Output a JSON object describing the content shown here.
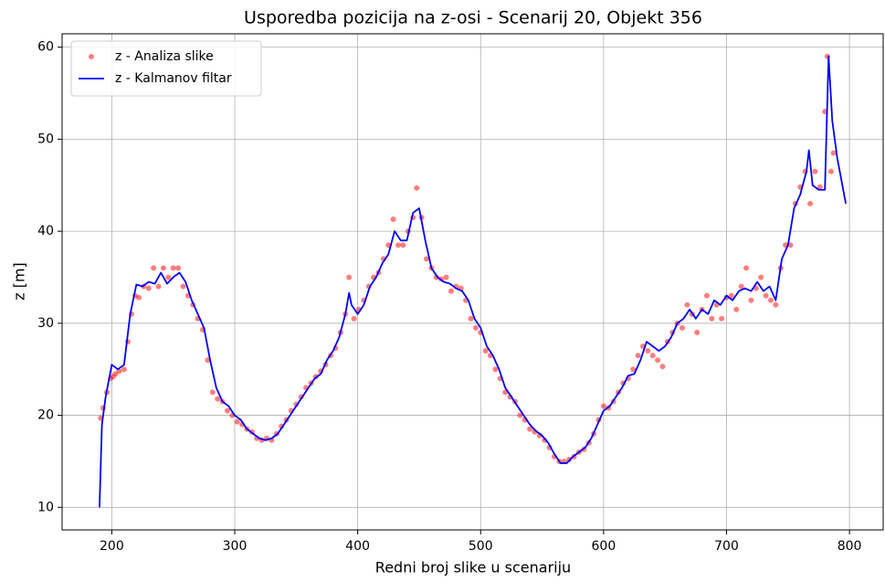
{
  "chart_data": {
    "type": "line",
    "title": "Usporedba pozicija na z-osi - Scenarij 20, Objekt 356",
    "xlabel": "Redni broj slike u scenariju",
    "ylabel": "z [m]",
    "xlim": [
      159.6,
      827.4
    ],
    "ylim": [
      7.55,
      61.45
    ],
    "xticks": [
      200,
      300,
      400,
      500,
      600,
      700,
      800
    ],
    "yticks": [
      10,
      20,
      30,
      40,
      50,
      60
    ],
    "grid": true,
    "legend": "upper left",
    "series": [
      {
        "name": "z - Analiza slike",
        "kind": "scatter",
        "color": "#ff0000",
        "x": [
          191,
          193,
          196,
          199,
          201,
          203,
          206,
          210,
          213,
          216,
          219,
          222,
          226,
          230,
          234,
          238,
          242,
          246,
          250,
          254,
          258,
          262,
          266,
          270,
          274,
          278,
          282,
          286,
          290,
          294,
          298,
          302,
          306,
          310,
          314,
          318,
          322,
          326,
          330,
          334,
          338,
          342,
          346,
          350,
          354,
          358,
          362,
          366,
          370,
          374,
          378,
          382,
          386,
          390,
          393,
          397,
          401,
          405,
          409,
          413,
          417,
          421,
          425,
          429,
          433,
          437,
          441,
          445,
          448,
          452,
          456,
          460,
          464,
          468,
          472,
          476,
          480,
          484,
          488,
          492,
          496,
          500,
          504,
          508,
          512,
          516,
          520,
          524,
          528,
          532,
          536,
          540,
          544,
          548,
          552,
          556,
          560,
          564,
          568,
          572,
          576,
          580,
          584,
          588,
          592,
          596,
          600,
          604,
          608,
          612,
          616,
          620,
          624,
          628,
          632,
          636,
          640,
          644,
          648,
          652,
          656,
          660,
          664,
          668,
          672,
          676,
          680,
          684,
          688,
          692,
          696,
          700,
          704,
          708,
          712,
          716,
          720,
          724,
          728,
          732,
          736,
          740,
          744,
          748,
          752,
          756,
          760,
          764,
          768,
          772,
          776,
          780,
          782,
          785,
          787
        ],
        "values": [
          19.7,
          20.8,
          22.5,
          24,
          24.2,
          24.5,
          24.8,
          25,
          28,
          31,
          33,
          32.8,
          34,
          33.8,
          36,
          34,
          36,
          35,
          36,
          36,
          34,
          33,
          32,
          30.5,
          29.3,
          26,
          22.5,
          21.8,
          21.5,
          20.5,
          20,
          19.3,
          19,
          18.5,
          18.2,
          17.5,
          17.3,
          17.5,
          17.3,
          18,
          18.8,
          19.5,
          20.5,
          21.2,
          22,
          23,
          23.5,
          24.2,
          24.8,
          25.5,
          26.5,
          27.3,
          29,
          31,
          35,
          30.5,
          31.5,
          32.5,
          34,
          35,
          35.5,
          37,
          38.5,
          41.3,
          38.5,
          38.5,
          40,
          41.5,
          44.7,
          41.5,
          37,
          36,
          35,
          34.8,
          35,
          33.5,
          34,
          33.8,
          32.5,
          30.5,
          29.5,
          29,
          27,
          26.5,
          25,
          24,
          22.5,
          22,
          21.5,
          20,
          19.5,
          18.5,
          18.2,
          17.8,
          17.3,
          16.5,
          15.5,
          15,
          15,
          15.2,
          15.5,
          16,
          16.3,
          17,
          18,
          19.5,
          21,
          20.8,
          21.5,
          22.5,
          23.5,
          24,
          25,
          26.5,
          27.5,
          27,
          26.5,
          26,
          25.3,
          28,
          29,
          30,
          29.5,
          32,
          31,
          29,
          31.5,
          33,
          30.5,
          32,
          30.5,
          32.8,
          33,
          31.5,
          34,
          36,
          32.5,
          33.8,
          35,
          33,
          32.5,
          32,
          36,
          38.5,
          38.5,
          43,
          44.8,
          46.5,
          43,
          46.5,
          44.8,
          53,
          59,
          46.5,
          48.5
        ]
      },
      {
        "name": "z - Kalmanov filtar",
        "kind": "line",
        "color": "#0000ff",
        "x": [
          190,
          192,
          195,
          200,
          205,
          210,
          215,
          220,
          225,
          230,
          235,
          240,
          245,
          250,
          255,
          260,
          265,
          270,
          275,
          280,
          285,
          290,
          295,
          300,
          305,
          310,
          315,
          320,
          325,
          330,
          335,
          340,
          345,
          350,
          355,
          360,
          365,
          370,
          375,
          380,
          385,
          390,
          393,
          395,
          400,
          405,
          410,
          415,
          420,
          425,
          430,
          435,
          440,
          445,
          450,
          455,
          460,
          465,
          470,
          475,
          480,
          485,
          490,
          495,
          500,
          505,
          510,
          515,
          520,
          525,
          530,
          535,
          540,
          545,
          550,
          555,
          560,
          565,
          570,
          575,
          580,
          585,
          590,
          595,
          600,
          605,
          610,
          615,
          620,
          625,
          630,
          635,
          640,
          645,
          650,
          655,
          660,
          665,
          670,
          675,
          680,
          685,
          690,
          695,
          700,
          705,
          710,
          715,
          720,
          725,
          730,
          735,
          740,
          745,
          750,
          755,
          760,
          765,
          767,
          770,
          775,
          780,
          783,
          786,
          790,
          797
        ],
        "values": [
          10,
          19,
          22,
          25.5,
          25,
          25.5,
          31,
          34.2,
          34,
          34.5,
          34.3,
          35.5,
          34.3,
          35,
          35.5,
          34.5,
          32.5,
          31,
          29.5,
          26,
          23,
          21.5,
          21,
          20,
          19.5,
          18.5,
          18,
          17.5,
          17.3,
          17.5,
          18,
          19,
          20,
          21,
          22,
          23,
          24,
          24.5,
          26,
          27,
          28.5,
          31,
          33.3,
          32,
          31,
          32,
          34,
          35,
          36.5,
          37.5,
          40,
          39,
          39,
          42,
          42.5,
          39,
          36,
          35,
          34.5,
          34.3,
          33.8,
          33.5,
          32.5,
          30.5,
          29.5,
          27.5,
          26.5,
          25,
          23,
          22,
          21,
          20,
          19,
          18.3,
          17.8,
          17,
          15.8,
          14.8,
          14.8,
          15.5,
          16,
          16.5,
          17.5,
          19,
          20.5,
          21,
          22,
          23,
          24.3,
          24.5,
          26,
          28,
          27.5,
          27,
          27.5,
          28.5,
          30,
          30.5,
          31.5,
          30.5,
          31.5,
          31,
          32.5,
          32,
          33,
          32.5,
          33.5,
          33.8,
          33.5,
          34.5,
          33.5,
          34,
          32.5,
          37,
          38.5,
          42.5,
          44,
          46.5,
          48.8,
          45,
          44.5,
          44.5,
          59,
          52,
          48,
          43
        ]
      }
    ]
  }
}
